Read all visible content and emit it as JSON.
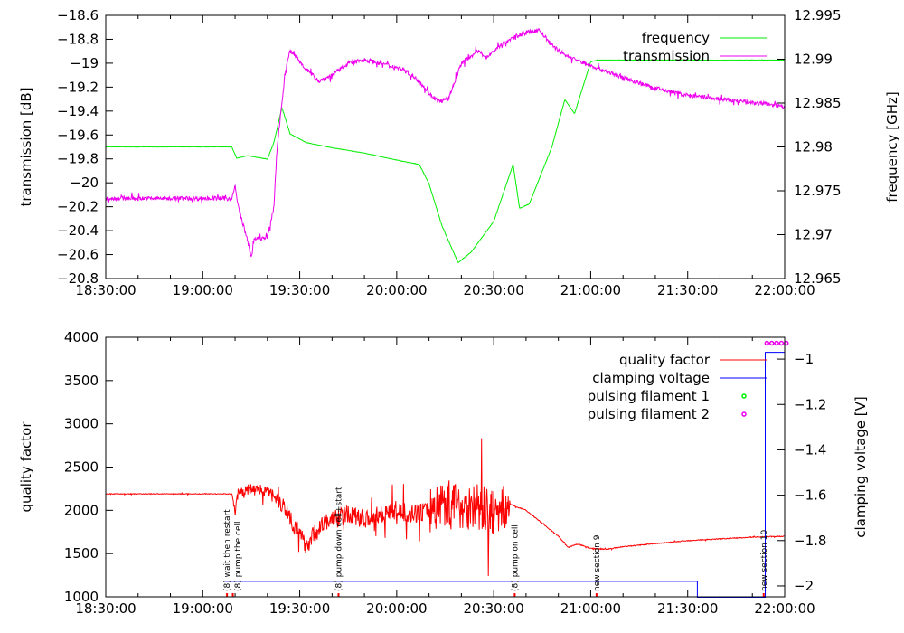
{
  "chart_data": [
    {
      "type": "line",
      "x_ticks": [
        "18:30:00",
        "19:00:00",
        "19:30:00",
        "20:00:00",
        "20:30:00",
        "21:00:00",
        "21:30:00",
        "22:00:00"
      ],
      "x_range_minutes_after_1830": [
        0,
        210
      ],
      "ylabel": "transmission [dB]",
      "y2label": "frequency [GHz]",
      "ylim": [
        -20.8,
        -18.6
      ],
      "y_ticks": [
        "-18.6",
        "-18.8",
        "-19",
        "-19.2",
        "-19.4",
        "-19.6",
        "-19.8",
        "-20",
        "-20.2",
        "-20.4",
        "-20.6",
        "-20.8"
      ],
      "y2lim": [
        12.965,
        12.995
      ],
      "y2_ticks": [
        "12.995",
        "12.99",
        "12.985",
        "12.98",
        "12.975",
        "12.97",
        "12.965"
      ],
      "legend_position": "top-right",
      "series": [
        {
          "name": "frequency",
          "axis": "y2",
          "color": "#00ee00",
          "noise": 4e-05,
          "points": [
            [
              0,
              12.98
            ],
            [
              39,
              12.98
            ],
            [
              40.5,
              12.9787
            ],
            [
              44,
              12.979
            ],
            [
              50,
              12.9786
            ],
            [
              52,
              12.9805
            ],
            [
              54.5,
              12.9845
            ],
            [
              57,
              12.9815
            ],
            [
              62,
              12.9805
            ],
            [
              70,
              12.9799
            ],
            [
              80,
              12.9793
            ],
            [
              90,
              12.9785
            ],
            [
              97,
              12.978
            ],
            [
              100,
              12.9758
            ],
            [
              104,
              12.971
            ],
            [
              109,
              12.9668
            ],
            [
              113,
              12.968
            ],
            [
              120,
              12.9715
            ],
            [
              126,
              12.978
            ],
            [
              128,
              12.973
            ],
            [
              131,
              12.9735
            ],
            [
              138,
              12.98
            ],
            [
              142,
              12.9854
            ],
            [
              145,
              12.9838
            ],
            [
              150,
              12.9897
            ],
            [
              152,
              12.9899
            ],
            [
              210,
              12.9899
            ]
          ]
        },
        {
          "name": "transmission",
          "axis": "y",
          "color": "#ee00ee",
          "noise": 0.035,
          "points": [
            [
              0,
              -20.13
            ],
            [
              39,
              -20.13
            ],
            [
              40,
              -20.03
            ],
            [
              41,
              -20.2
            ],
            [
              43,
              -20.4
            ],
            [
              44,
              -20.5
            ],
            [
              45,
              -20.62
            ],
            [
              46,
              -20.47
            ],
            [
              50,
              -20.46
            ],
            [
              52,
              -20.2
            ],
            [
              53,
              -19.7
            ],
            [
              55,
              -19.2
            ],
            [
              56,
              -19.0
            ],
            [
              57,
              -18.9
            ],
            [
              59,
              -18.95
            ],
            [
              62,
              -19.05
            ],
            [
              66,
              -19.15
            ],
            [
              70,
              -19.1
            ],
            [
              75,
              -19.0
            ],
            [
              80,
              -18.97
            ],
            [
              85,
              -19.0
            ],
            [
              92,
              -19.05
            ],
            [
              97,
              -19.15
            ],
            [
              100,
              -19.25
            ],
            [
              103,
              -19.32
            ],
            [
              106,
              -19.3
            ],
            [
              110,
              -19.0
            ],
            [
              115,
              -18.9
            ],
            [
              118,
              -18.95
            ],
            [
              122,
              -18.85
            ],
            [
              128,
              -18.76
            ],
            [
              134,
              -18.72
            ],
            [
              138,
              -18.85
            ],
            [
              142,
              -18.93
            ],
            [
              148,
              -19.0
            ],
            [
              160,
              -19.12
            ],
            [
              170,
              -19.21
            ],
            [
              180,
              -19.27
            ],
            [
              200,
              -19.33
            ],
            [
              210,
              -19.36
            ]
          ]
        }
      ]
    },
    {
      "type": "line",
      "x_ticks": [
        "18:30:00",
        "19:00:00",
        "19:30:00",
        "20:00:00",
        "20:30:00",
        "21:00:00",
        "21:30:00",
        "22:00:00"
      ],
      "x_range_minutes_after_1830": [
        0,
        210
      ],
      "ylabel": "quality factor",
      "y2label": "clamping voltage [V]",
      "ylim": [
        1000,
        4000
      ],
      "y_ticks": [
        "4000",
        "3500",
        "3000",
        "2500",
        "2000",
        "1500",
        "1000"
      ],
      "y2lim": [
        -2.048,
        -0.904
      ],
      "y2_ticks": [
        "-1",
        "-1.2",
        "-1.4",
        "-1.6",
        "-1.8",
        "-2"
      ],
      "legend_position": "top-right",
      "series": [
        {
          "name": "quality factor",
          "axis": "y",
          "color": "#ff0000",
          "noise_by_range": [
            [
              0,
              39,
              8
            ],
            [
              39,
              52,
              120
            ],
            [
              52,
              100,
              220
            ],
            [
              100,
              125,
              550
            ],
            [
              125,
              210,
              10
            ]
          ],
          "points": [
            [
              0,
              2190
            ],
            [
              39,
              2190
            ],
            [
              40,
              1980
            ],
            [
              41,
              2200
            ],
            [
              43,
              2230
            ],
            [
              45,
              2250
            ],
            [
              48,
              2240
            ],
            [
              52,
              2200
            ],
            [
              56,
              2000
            ],
            [
              60,
              1700
            ],
            [
              62,
              1600
            ],
            [
              66,
              1800
            ],
            [
              70,
              1900
            ],
            [
              75,
              1950
            ],
            [
              80,
              1900
            ],
            [
              85,
              1950
            ],
            [
              90,
              2000
            ],
            [
              95,
              1950
            ],
            [
              100,
              2000
            ],
            [
              105,
              2100
            ],
            [
              110,
              2050
            ],
            [
              115,
              2050
            ],
            [
              120,
              1950
            ],
            [
              125,
              2070
            ],
            [
              130,
              2000
            ],
            [
              135,
              1850
            ],
            [
              140,
              1700
            ],
            [
              143,
              1570
            ],
            [
              146,
              1610
            ],
            [
              150,
              1560
            ],
            [
              155,
              1550
            ],
            [
              160,
              1580
            ],
            [
              180,
              1650
            ],
            [
              200,
              1690
            ],
            [
              210,
              1700
            ]
          ]
        },
        {
          "name": "clamping voltage",
          "axis": "y2",
          "color": "#0000ff",
          "points": [
            [
              37,
              -1.98
            ],
            [
              183,
              -1.98
            ],
            [
              183,
              -2.05
            ],
            [
              204,
              -2.05
            ],
            [
              204,
              -0.97
            ],
            [
              210,
              -0.97
            ]
          ]
        },
        {
          "name": "pulsing filament 1",
          "axis": "y2",
          "color": "#00ee00",
          "points": []
        },
        {
          "name": "pulsing filament 2",
          "axis": "y2",
          "color": "#ee00ee",
          "points": [
            [
              204.5,
              -0.93
            ],
            [
              206,
              -0.93
            ],
            [
              207.5,
              -0.93
            ],
            [
              209,
              -0.93
            ],
            [
              210.5,
              -0.93
            ]
          ]
        }
      ],
      "events": [
        {
          "t": 37.5,
          "label": "(8) wait then restart"
        },
        {
          "t": 39.3,
          "label": "(8) pump the cell"
        },
        {
          "t": 72,
          "label": "(8) pump down cell+start"
        },
        {
          "t": 126.5,
          "label": "(8) pump on cell"
        },
        {
          "t": 151.8,
          "label": "new section 9"
        },
        {
          "t": 203.5,
          "label": "new section 10"
        }
      ]
    }
  ]
}
